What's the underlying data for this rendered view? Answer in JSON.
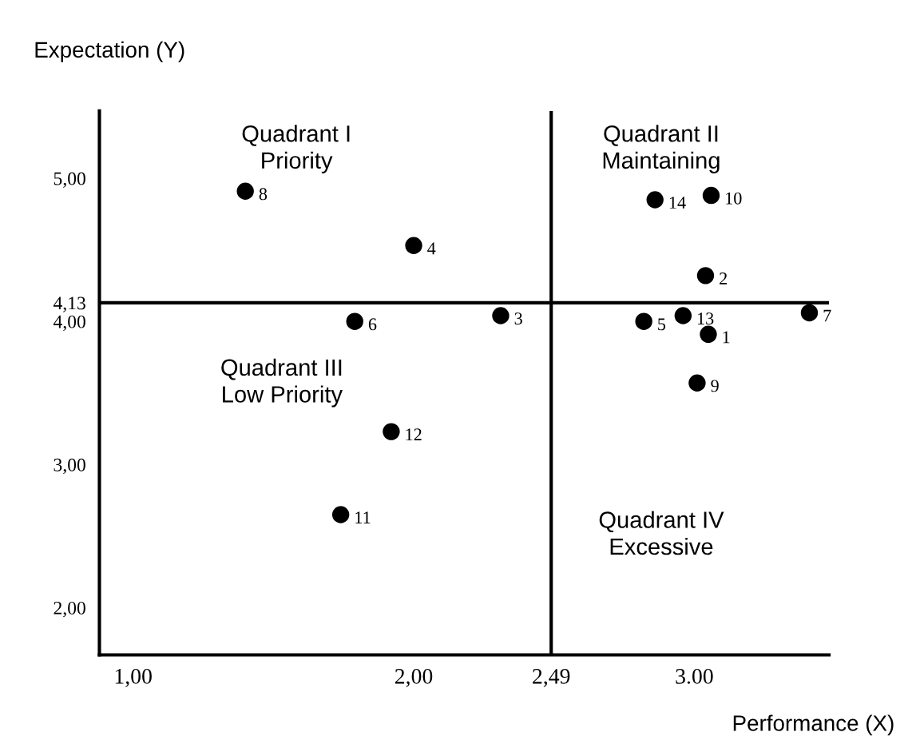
{
  "chart_data": {
    "type": "scatter",
    "xlabel": "Performance (X)",
    "ylabel": "Expectation (Y)",
    "x": [
      3.05,
      3.04,
      2.31,
      2.0,
      2.82,
      1.79,
      3.41,
      1.4,
      3.01,
      3.06,
      1.74,
      1.92,
      2.96,
      2.86
    ],
    "values": [
      3.91,
      4.32,
      4.04,
      4.53,
      4.0,
      4.0,
      4.06,
      4.91,
      3.57,
      4.88,
      2.65,
      3.23,
      4.04,
      4.85
    ],
    "color": "#000000",
    "marker": "circle",
    "grid": false,
    "legend": false,
    "xlim": [
      0.88,
      3.48
    ],
    "ylim": [
      1.67,
      5.47
    ],
    "xticks": [
      {
        "value": 1.0,
        "label": "1,00"
      },
      {
        "value": 2.0,
        "label": "2,00"
      },
      {
        "value": 2.49,
        "label": "2,49"
      },
      {
        "value": 3.0,
        "label": "3.00"
      }
    ],
    "yticks": [
      {
        "value": 2.0,
        "label": "2,00"
      },
      {
        "value": 3.0,
        "label": "3,00"
      },
      {
        "value": 4.0,
        "label": "4,00"
      },
      {
        "value": 4.13,
        "label": "4,13"
      },
      {
        "value": 5.0,
        "label": "5,00"
      }
    ],
    "ref_lines": [
      {
        "axis": "x",
        "value": 2.49,
        "color": "#000000"
      },
      {
        "axis": "y",
        "value": 4.13,
        "color": "#000000"
      }
    ],
    "annotations": [
      {
        "text": "1",
        "x": 3.05,
        "y": 3.91
      },
      {
        "text": "2",
        "x": 3.04,
        "y": 4.32
      },
      {
        "text": "3",
        "x": 2.31,
        "y": 4.04
      },
      {
        "text": "4",
        "x": 2.0,
        "y": 4.53
      },
      {
        "text": "5",
        "x": 2.82,
        "y": 4.0
      },
      {
        "text": "6",
        "x": 1.79,
        "y": 4.0
      },
      {
        "text": "7",
        "x": 3.41,
        "y": 4.06
      },
      {
        "text": "8",
        "x": 1.4,
        "y": 4.91
      },
      {
        "text": "9",
        "x": 3.01,
        "y": 3.57
      },
      {
        "text": "10",
        "x": 3.06,
        "y": 4.88
      },
      {
        "text": "11",
        "x": 1.74,
        "y": 2.65
      },
      {
        "text": "12",
        "x": 1.92,
        "y": 3.23
      },
      {
        "text": "13",
        "x": 2.96,
        "y": 4.04
      },
      {
        "text": "14",
        "x": 2.86,
        "y": 4.85
      },
      "Quadrant I\nPriority",
      "Quadrant II\nMaintaining",
      "Quadrant III\nLow Priority",
      "Quadrant IV\nExcessive"
    ]
  }
}
